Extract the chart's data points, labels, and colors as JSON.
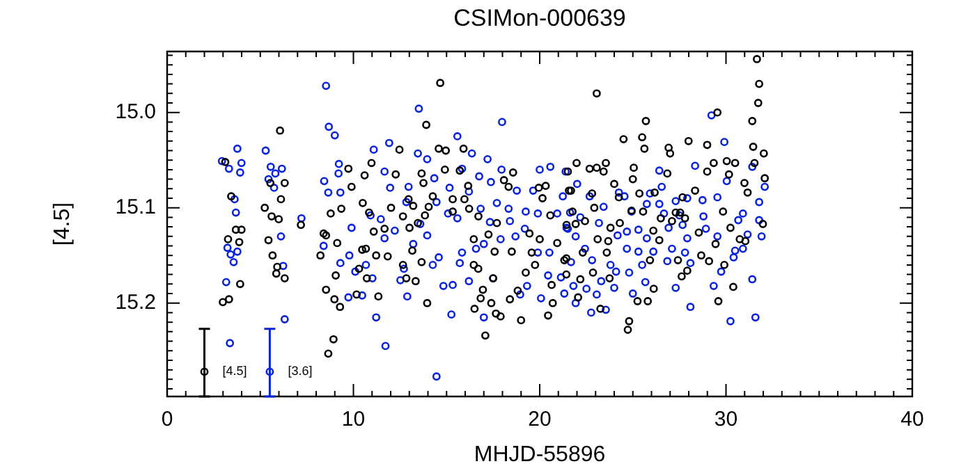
{
  "chart_data": {
    "type": "scatter",
    "title": "CSIMon-000639",
    "xlabel": "MHJD-55896",
    "ylabel": "[4.5]",
    "xlim": [
      0,
      40
    ],
    "xticks": [
      0,
      10,
      20,
      30,
      40
    ],
    "ylim": [
      15.298,
      14.936
    ],
    "yticks": [
      {
        "value": 15,
        "label": "15.0"
      },
      {
        "value": 15.1,
        "label": "15.1"
      },
      {
        "value": 15.2,
        "label": "15.2"
      }
    ],
    "grid": false,
    "legend": false,
    "marker": "circle",
    "series": [
      {
        "color": "#000000",
        "x": [
          6.06,
          3.12,
          5.54,
          6.31,
          6.11,
          3.44,
          5.24,
          5.61,
          5.99,
          3.69,
          3.99,
          3.27,
          3.87,
          5.44,
          5.66,
          5.91,
          5.86,
          6.31,
          3.92,
          2.99,
          3.32,
          7.18,
          8.93,
          8.65,
          8.78,
          9.35,
          9.73,
          10.6,
          9.9,
          10.5,
          8.4,
          8.53,
          9.13,
          8.23,
          9.05,
          8.53,
          8.98,
          9.28,
          10.17,
          10.3,
          10.47,
          14.66,
          13.91,
          12.47,
          14.58,
          14.96,
          15.91,
          10.97,
          12.27,
          13.66,
          14.91,
          15.71,
          18.57,
          13.76,
          16.16,
          18.08,
          18.33,
          19.95,
          20.32,
          21.57,
          12.96,
          14.26,
          15.33,
          15.96,
          20.15,
          12.02,
          13.21,
          14.04,
          16.21,
          16.71,
          15.33,
          10.84,
          12.66,
          13.84,
          20.57,
          11.09,
          11.67,
          13.01,
          13.46,
          17.7,
          21.44,
          16.46,
          17.25,
          19.45,
          20.0,
          20.94,
          10.67,
          11.22,
          11.84,
          13.16,
          17.58,
          18.5,
          19.57,
          12.66,
          13.66,
          16.46,
          16.7,
          19.25,
          19.75,
          21.32,
          10.72,
          12.84,
          13.34,
          17.5,
          18.82,
          20.64,
          11.34,
          13.96,
          16.95,
          16.83,
          17.4,
          16.5,
          18.4,
          20.7,
          17.65,
          17.9,
          19.0,
          20.45,
          17.08,
          31.66,
          31.78,
          31.73,
          23.06,
          29.54,
          31.41,
          25.7,
          24.5,
          25.5,
          25.62,
          26.92,
          27.0,
          27.99,
          28.99,
          31.46,
          32.03,
          21.98,
          22.68,
          23.06,
          23.55,
          23.43,
          25.05,
          26.85,
          25.0,
          24.0,
          21.51,
          21.68,
          22.81,
          24.25,
          25.35,
          26.17,
          27.67,
          28.34,
          28.99,
          29.34,
          30.04,
          30.49,
          30.16,
          30.99,
          31.16,
          31.53,
          32.08,
          22.93,
          21.76,
          22.43,
          21.93,
          24.3,
          24.93,
          25.55,
          26.5,
          27.1,
          27.3,
          27.54,
          27.8,
          29.84,
          30.24,
          30.74,
          31.98,
          23.11,
          23.68,
          23.8,
          26.1,
          26.42,
          28.54,
          29.44,
          31.04,
          21.43,
          22.31,
          23.6,
          25.92,
          27.42,
          28.67,
          29.09,
          29.91,
          27.92,
          27.62,
          21.43,
          22.18,
          22.86,
          23.75,
          22.06,
          23.26,
          25.25,
          25.8,
          26.12,
          30.39,
          29.59,
          24.8,
          24.73
        ],
        "values": [
          15.019,
          15.052,
          15.074,
          15.074,
          15.091,
          15.088,
          15.1,
          15.109,
          15.112,
          15.123,
          15.123,
          15.133,
          15.136,
          15.134,
          15.15,
          15.162,
          15.169,
          15.174,
          15.18,
          15.199,
          15.196,
          15.118,
          15.238,
          15.253,
          15.106,
          15.101,
          15.059,
          15.066,
          15.078,
          15.095,
          15.127,
          15.129,
          15.137,
          15.15,
          15.171,
          15.186,
          15.196,
          15.204,
          15.191,
          15.164,
          15.144,
          14.969,
          15.013,
          15.039,
          15.038,
          15.04,
          15.038,
          15.053,
          15.065,
          15.064,
          15.06,
          15.061,
          15.063,
          15.074,
          15.077,
          15.071,
          15.078,
          15.079,
          15.077,
          15.082,
          15.091,
          15.088,
          15.091,
          15.091,
          15.09,
          15.1,
          15.098,
          15.099,
          15.101,
          15.109,
          15.104,
          15.105,
          15.109,
          15.108,
          15.108,
          15.125,
          15.122,
          15.121,
          15.116,
          15.116,
          15.118,
          15.133,
          15.128,
          15.127,
          15.133,
          15.137,
          15.143,
          15.15,
          15.151,
          15.145,
          15.146,
          15.146,
          15.147,
          15.16,
          15.157,
          15.16,
          15.164,
          15.168,
          15.16,
          15.155,
          15.174,
          15.174,
          15.177,
          15.174,
          15.187,
          15.181,
          15.193,
          15.2,
          15.186,
          15.195,
          15.2,
          15.206,
          15.196,
          15.2,
          15.211,
          15.214,
          15.218,
          15.213,
          15.234,
          14.944,
          14.97,
          14.99,
          14.98,
          15.0,
          15.009,
          15.009,
          15.028,
          15.026,
          15.038,
          15.037,
          15.043,
          15.03,
          15.034,
          15.036,
          15.043,
          15.053,
          15.059,
          15.058,
          15.053,
          15.062,
          15.058,
          15.064,
          15.07,
          15.075,
          15.062,
          15.082,
          15.085,
          15.089,
          15.085,
          15.084,
          15.089,
          15.082,
          15.062,
          15.053,
          15.051,
          15.053,
          15.065,
          15.074,
          15.084,
          15.053,
          15.069,
          15.1,
          15.104,
          15.114,
          15.117,
          15.116,
          15.103,
          15.104,
          15.111,
          15.114,
          15.105,
          15.105,
          15.111,
          15.104,
          15.121,
          15.133,
          15.117,
          15.133,
          15.135,
          15.121,
          15.124,
          15.134,
          15.126,
          15.138,
          15.135,
          15.153,
          15.147,
          15.147,
          15.155,
          15.155,
          15.15,
          15.156,
          15.16,
          15.166,
          15.172,
          15.17,
          15.175,
          15.168,
          15.174,
          15.194,
          15.206,
          15.198,
          15.198,
          15.185,
          15.183,
          15.198,
          15.219,
          15.228
        ]
      },
      {
        "color": "#0a23dc",
        "x": [
          8.53,
          8.68,
          9.0,
          3.77,
          5.29,
          2.94,
          3.99,
          3.32,
          3.92,
          5.56,
          6.16,
          5.81,
          5.44,
          5.74,
          3.62,
          3.69,
          7.21,
          8.43,
          9.22,
          9.2,
          8.65,
          9.3,
          9.9,
          3.24,
          3.41,
          3.57,
          3.77,
          6.11,
          6.23,
          8.4,
          9.3,
          9.78,
          3.17,
          6.31,
          3.37,
          9.73,
          10.47,
          10.1,
          13.51,
          17.98,
          15.58,
          11.92,
          11.09,
          13.46,
          16.36,
          17.2,
          13.96,
          15.83,
          11.67,
          14.34,
          16.75,
          17.95,
          20.0,
          20.57,
          21.39,
          17.38,
          16.2,
          11.97,
          12.96,
          15.16,
          18.77,
          19.65,
          21.24,
          12.84,
          14.46,
          17.7,
          16.83,
          18.33,
          19.25,
          19.9,
          10.92,
          20.94,
          15.08,
          15.58,
          13.59,
          11.47,
          17.33,
          18.4,
          19.2,
          21.44,
          12.22,
          13.96,
          11.67,
          17.9,
          18.7,
          17.0,
          13.21,
          16.58,
          15.83,
          19.9,
          20.52,
          10.67,
          14.58,
          15.71,
          14.26,
          12.71,
          20.45,
          21.14,
          11.02,
          12.52,
          16.2,
          17.5,
          15.33,
          14.83,
          19.32,
          12.89,
          18.95,
          20.07,
          21.32,
          11.22,
          15.26,
          17.0,
          11.72,
          14.46,
          29.22,
          29.91,
          28.34,
          26.42,
          31.41,
          30.04,
          32.08,
          22.01,
          22.68,
          24.25,
          24.55,
          25.92,
          26.55,
          27.3,
          27.92,
          28.74,
          29.54,
          31.78,
          23.43,
          21.63,
          24.93,
          25.75,
          26.42,
          26.67,
          27.5,
          28.79,
          30.91,
          22.18,
          23.18,
          30.66,
          31.78,
          21.51,
          24.68,
          25.3,
          26.92,
          27.67,
          28.92,
          29.54,
          31.16,
          31.91,
          21.93,
          24.18,
          25.75,
          27.92,
          22.43,
          24.68,
          25.3,
          26.1,
          27.1,
          27.8,
          30.49,
          30.91,
          21.68,
          22.81,
          23.8,
          25.5,
          26.85,
          28.09,
          30.41,
          24.1,
          24.8,
          29.74,
          21.81,
          22.51,
          23.3,
          24.0,
          25.67,
          27.3,
          29.34,
          31.41,
          21.93,
          23.06,
          25.0,
          22.76,
          23.55,
          28.09,
          30.24,
          31.58
        ],
        "values": [
          14.972,
          15.015,
          15.024,
          15.038,
          15.04,
          15.051,
          15.053,
          15.059,
          15.063,
          15.057,
          15.059,
          15.064,
          15.07,
          15.079,
          15.091,
          15.105,
          15.111,
          15.072,
          15.054,
          15.064,
          15.084,
          15.084,
          15.121,
          15.142,
          15.149,
          15.157,
          15.146,
          15.13,
          15.161,
          15.14,
          15.158,
          15.15,
          15.178,
          15.217,
          15.242,
          15.194,
          15.192,
          15.167,
          14.996,
          15.01,
          15.025,
          15.032,
          15.039,
          15.043,
          15.043,
          15.049,
          15.049,
          15.059,
          15.062,
          15.069,
          15.067,
          15.06,
          15.06,
          15.057,
          15.062,
          15.073,
          15.083,
          15.079,
          15.078,
          15.079,
          15.082,
          15.082,
          15.088,
          15.094,
          15.094,
          15.095,
          15.101,
          15.101,
          15.104,
          15.106,
          15.108,
          15.106,
          15.106,
          15.111,
          15.117,
          15.112,
          15.115,
          15.114,
          15.122,
          15.121,
          15.124,
          15.129,
          15.132,
          15.133,
          15.13,
          15.138,
          15.138,
          15.143,
          15.147,
          15.147,
          15.147,
          15.16,
          15.152,
          15.158,
          15.16,
          15.164,
          15.171,
          15.173,
          15.174,
          15.176,
          15.177,
          15.174,
          15.181,
          15.182,
          15.182,
          15.193,
          15.191,
          15.195,
          15.19,
          15.215,
          15.212,
          15.215,
          15.245,
          15.277,
          15.003,
          15.031,
          15.056,
          15.061,
          15.057,
          15.072,
          15.078,
          15.075,
          15.088,
          15.084,
          15.088,
          15.085,
          15.078,
          15.093,
          15.09,
          15.092,
          15.089,
          15.094,
          15.099,
          15.105,
          15.104,
          15.096,
          15.096,
          15.106,
          15.108,
          15.109,
          15.106,
          15.11,
          15.116,
          15.113,
          15.113,
          15.122,
          15.125,
          15.123,
          15.121,
          15.118,
          15.122,
          15.13,
          15.128,
          15.13,
          15.13,
          15.129,
          15.132,
          15.132,
          15.143,
          15.143,
          15.146,
          15.146,
          15.143,
          15.147,
          15.145,
          15.143,
          15.157,
          15.155,
          15.16,
          15.16,
          15.156,
          15.158,
          15.152,
          15.167,
          15.168,
          15.167,
          15.182,
          15.185,
          15.177,
          15.184,
          15.178,
          15.184,
          15.182,
          15.175,
          15.2,
          15.191,
          15.19,
          15.21,
          15.207,
          15.204,
          15.219,
          15.215
        ]
      },
      {
        "name": "[4.5]",
        "color": "#000000",
        "x": [
          2.0
        ],
        "values": [
          15.272
        ],
        "errors": [
          [
            15.227,
            15.298
          ]
        ]
      },
      {
        "name": "[3.6]",
        "color": "#0a23dc",
        "x": [
          5.51
        ],
        "values": [
          15.272
        ],
        "errors": [
          [
            15.227,
            15.298
          ]
        ]
      }
    ]
  }
}
